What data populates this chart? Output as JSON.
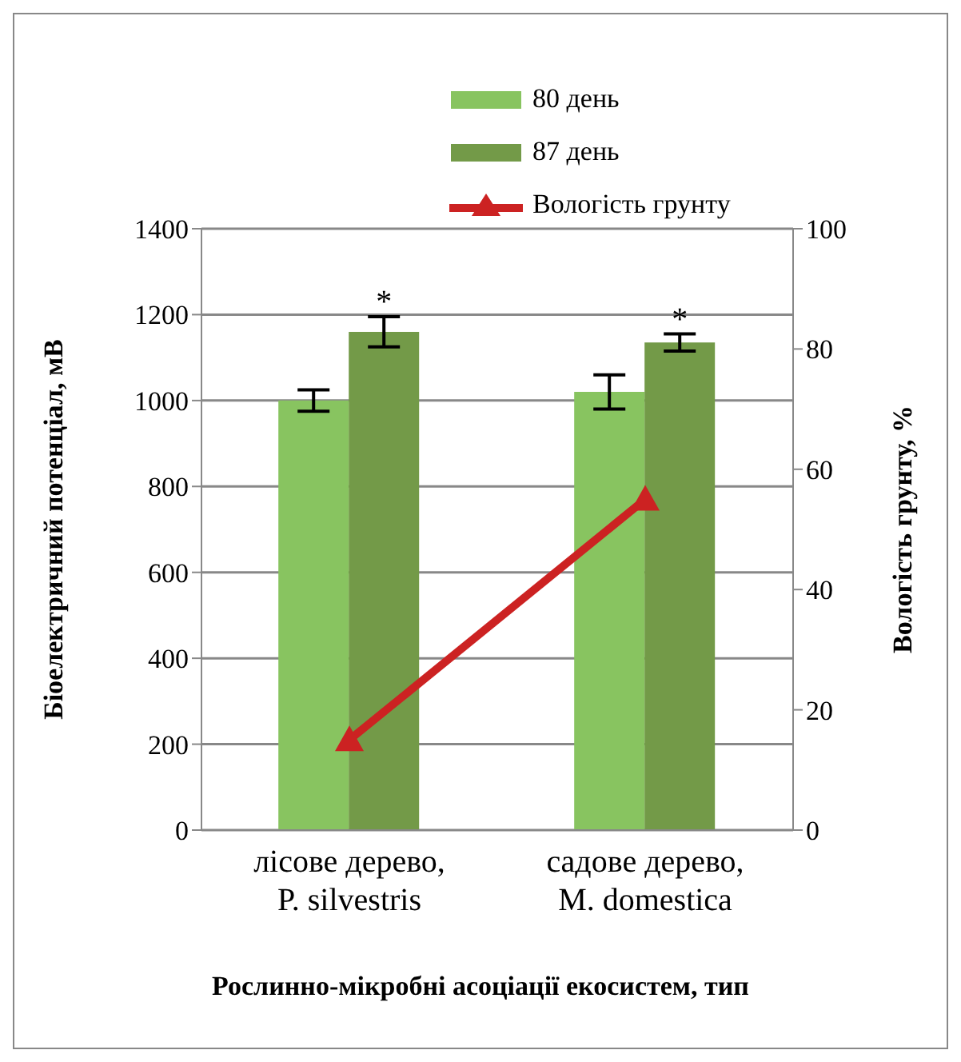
{
  "chart_data": {
    "type": "bar",
    "xlabel": "Рослинно-мікробні асоціації екосистем, тип",
    "ylabel": "Біоелектричний потенціал, мВ",
    "y2label": "Вологість грунту,  %",
    "categories": [
      "лісове дерево, P. silvestris",
      "садове дерево, M. domestica"
    ],
    "series": [
      {
        "name": "80 день",
        "color": "#88c460",
        "values": [
          1000,
          1020
        ],
        "errors": [
          25,
          40
        ]
      },
      {
        "name": "87 день",
        "color": "#739a48",
        "values": [
          1160,
          1135
        ],
        "errors": [
          35,
          20
        ]
      },
      {
        "name": "Вологість грунту",
        "type": "line",
        "axis": "y2",
        "color": "#cc2222",
        "values": [
          15,
          55
        ],
        "marker": "triangle"
      }
    ],
    "ylim": [
      0,
      1400
    ],
    "yticks": [
      0,
      200,
      400,
      600,
      800,
      1000,
      1200,
      1400
    ],
    "y2lim": [
      0,
      100
    ],
    "y2ticks": [
      0,
      20,
      40,
      60,
      80,
      100
    ],
    "grid": "y",
    "legend": "top",
    "annotations": [
      "*",
      "*"
    ]
  }
}
